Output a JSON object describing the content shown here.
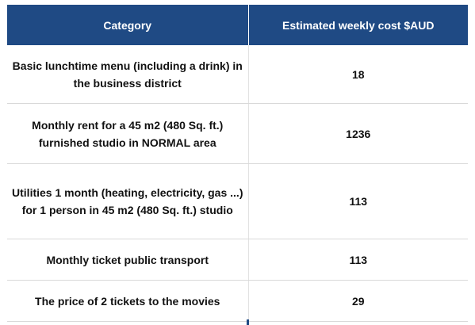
{
  "table": {
    "headers": [
      "Category",
      "Estimated weekly cost $AUD"
    ],
    "rows": [
      {
        "category": "Basic lunchtime menu (including a drink) in the business district",
        "cost": "18"
      },
      {
        "category": "Monthly rent for a 45 m2 (480 Sq. ft.) furnished studio in NORMAL area",
        "cost": "1236"
      },
      {
        "category": "Utilities 1 month (heating, electricity, gas ...) for 1 person in 45 m2 (480 Sq. ft.) studio",
        "cost": "113"
      },
      {
        "category": "Monthly ticket public transport",
        "cost": "113"
      },
      {
        "category": "The price of 2 tickets to the movies",
        "cost": "29"
      }
    ]
  },
  "colors": {
    "header_bg": "#1f4a84",
    "header_text": "#ffffff",
    "row_divider": "#d9d9d9"
  }
}
